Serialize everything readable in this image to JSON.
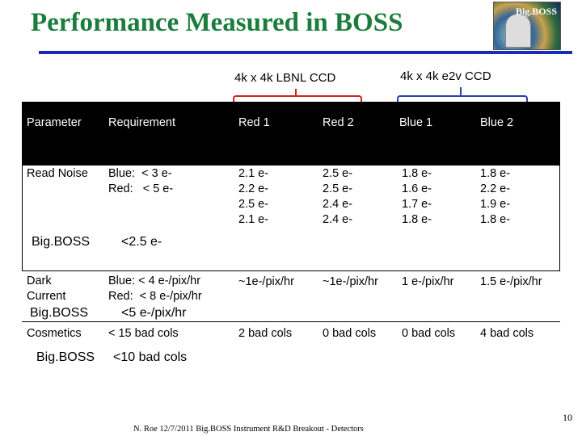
{
  "title": "Performance Measured in BOSS",
  "logo_text": "Big.BOSS",
  "groups": {
    "lbnl": "4k x 4k LBNL CCD",
    "e2v": "4k x 4k e2v CCD"
  },
  "colors": {
    "title": "#1a7d3c",
    "rule": "#1a2bb5",
    "red_bracket": "#d42020",
    "blue_bracket": "#2a3fb0"
  },
  "headers": [
    "Parameter",
    "Requirement",
    "Red 1",
    "Red 2",
    "Blue 1",
    "Blue 2"
  ],
  "read_noise": {
    "parameter": "Read Noise",
    "requirement": "Blue:  < 3 e-\nRed:   < 5 e-",
    "red1": "2.1 e-\n2.2 e-\n2.5 e-\n2.1 e-",
    "red2": "2.5 e-\n2.5 e-\n2.4 e-\n2.4 e-",
    "blue1": "1.8 e-\n1.6 e-\n1.7 e-\n1.8 e-",
    "blue2": "1.8 e-\n2.2 e-\n1.9 e-\n1.8 e-",
    "bigboss_label": "Big.BOSS",
    "bigboss_req": "<2.5 e-"
  },
  "dark_current": {
    "parameter": "Dark\nCurrent",
    "requirement": "Blue: < 4 e-/pix/hr\nRed:  < 8 e-/pix/hr",
    "red1": "~1e-/pix/hr",
    "red2": "~1e-/pix/hr",
    "blue1": "1 e-/pix/hr",
    "blue2": "1.5 e-/pix/hr",
    "bigboss_label": "Big.BOSS",
    "bigboss_req": "<5 e-/pix/hr"
  },
  "cosmetics": {
    "parameter": "Cosmetics",
    "requirement": "< 15 bad cols",
    "red1": "2 bad cols",
    "red2": "0 bad cols",
    "blue1": "0 bad cols",
    "blue2": "4 bad cols",
    "bigboss_label": "Big.BOSS",
    "bigboss_req": "<10 bad cols"
  },
  "footer": "N. Roe 12/7/2011 Big.BOSS Instrument R&D Breakout - Detectors",
  "page_number": "10"
}
